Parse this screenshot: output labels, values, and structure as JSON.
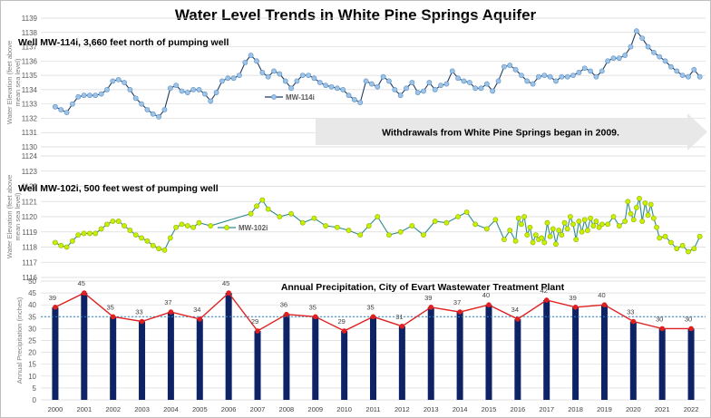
{
  "title": "Water Level Trends in White Pine Springs Aquifer",
  "colors": {
    "mw114_line": "#1f3b5c",
    "mw114_marker": "#9dc3e6",
    "mw114_marker_edge": "#5b8fc7",
    "mw102_line": "#2e8b8b",
    "mw102_marker": "#c8f000",
    "mw102_marker_edge": "#8fb000",
    "bar": "#0d2366",
    "precip_line": "#e02020",
    "avg_line": "#2e86c1",
    "grid": "#d9d9d9",
    "arrow_fill": "#e8e8e8"
  },
  "chart_data": [
    {
      "type": "line",
      "id": "mw114",
      "title": "Well MW-114i, 3,660 feet north of pumping well",
      "ylabel": "Water Elevation (feet above mean sea level)",
      "legend": "MW-114i",
      "ylim": [
        1130,
        1139
      ],
      "yticks": [
        1130,
        1131,
        1132,
        1133,
        1134,
        1135,
        1136,
        1137,
        1138,
        1139
      ],
      "annotation": "Withdrawals from White Pine Springs began in 2009.",
      "x": [
        2000.0,
        2000.2,
        2000.4,
        2000.6,
        2000.8,
        2001.0,
        2001.2,
        2001.4,
        2001.6,
        2001.8,
        2002.0,
        2002.2,
        2002.4,
        2002.6,
        2002.8,
        2003.0,
        2003.2,
        2003.4,
        2003.6,
        2003.8,
        2004.0,
        2004.2,
        2004.4,
        2004.6,
        2004.8,
        2005.0,
        2005.2,
        2005.4,
        2005.6,
        2005.8,
        2006.0,
        2006.2,
        2006.4,
        2006.6,
        2006.8,
        2007.0,
        2007.2,
        2007.4,
        2007.6,
        2007.8,
        2008.0,
        2008.2,
        2008.4,
        2008.6,
        2008.8,
        2009.0,
        2009.2,
        2009.4,
        2009.6,
        2009.8,
        2010.0,
        2010.2,
        2010.4,
        2010.6,
        2010.8,
        2011.0,
        2011.2,
        2011.4,
        2011.6,
        2011.8,
        2012.0,
        2012.2,
        2012.4,
        2012.6,
        2012.8,
        2013.0,
        2013.2,
        2013.4,
        2013.6,
        2013.8,
        2014.0,
        2014.2,
        2014.4,
        2014.6,
        2014.8,
        2015.0,
        2015.2,
        2015.4,
        2015.6,
        2015.8,
        2016.0,
        2016.2,
        2016.4,
        2016.6,
        2016.8,
        2017.0,
        2017.2,
        2017.4,
        2017.6,
        2017.8,
        2018.0,
        2018.2,
        2018.4,
        2018.6,
        2018.8,
        2019.0,
        2019.2,
        2019.4,
        2019.6,
        2019.8,
        2020.0,
        2020.2,
        2020.4,
        2020.6,
        2020.8,
        2021.0,
        2021.2,
        2021.4,
        2021.6,
        2021.8,
        2022.0,
        2022.2,
        2022.4
      ],
      "y": [
        1132.8,
        1132.6,
        1132.4,
        1133.0,
        1133.5,
        1133.6,
        1133.6,
        1133.6,
        1133.7,
        1134.0,
        1134.6,
        1134.7,
        1134.5,
        1134.0,
        1133.4,
        1133.0,
        1132.6,
        1132.3,
        1132.1,
        1132.6,
        1134.1,
        1134.3,
        1133.9,
        1133.8,
        1134.0,
        1134.0,
        1133.7,
        1133.2,
        1133.8,
        1134.6,
        1134.8,
        1134.8,
        1135.0,
        1135.9,
        1136.4,
        1136.0,
        1135.2,
        1134.9,
        1135.3,
        1135.1,
        1134.6,
        1134.1,
        1134.6,
        1135.0,
        1135.0,
        1134.8,
        1134.5,
        1134.3,
        1134.2,
        1134.1,
        1134.0,
        1133.6,
        1133.3,
        1133.1,
        1134.6,
        1134.4,
        1134.2,
        1134.9,
        1134.6,
        1134.0,
        1133.6,
        1134.1,
        1134.5,
        1133.8,
        1133.9,
        1134.5,
        1134.0,
        1134.3,
        1134.4,
        1135.3,
        1134.8,
        1134.6,
        1134.5,
        1134.1,
        1134.1,
        1134.4,
        1133.9,
        1134.6,
        1135.6,
        1135.7,
        1135.4,
        1135.0,
        1134.6,
        1134.4,
        1134.9,
        1135.0,
        1134.9,
        1134.6,
        1134.9,
        1134.9,
        1135.0,
        1135.2,
        1135.5,
        1135.3,
        1134.9,
        1135.3,
        1136.0,
        1136.2,
        1136.2,
        1136.4,
        1137.0,
        1138.1,
        1137.6,
        1137.0,
        1136.6,
        1136.3,
        1136.0,
        1135.6,
        1135.3,
        1135.0,
        1134.9,
        1135.4,
        1134.9
      ]
    },
    {
      "type": "line",
      "id": "mw102",
      "title": "Well MW-102i, 500 feet west of pumping well",
      "ylabel": "Water Elevation (feet above mean sea level)",
      "legend": "MW-102i",
      "ylim": [
        1116,
        1124
      ],
      "yticks": [
        1116,
        1117,
        1118,
        1119,
        1120,
        1121,
        1122,
        1123,
        1124
      ],
      "x": [
        2000.0,
        2000.2,
        2000.4,
        2000.6,
        2000.8,
        2001.0,
        2001.2,
        2001.4,
        2001.6,
        2001.8,
        2002.0,
        2002.2,
        2002.4,
        2002.6,
        2002.8,
        2003.0,
        2003.2,
        2003.4,
        2003.6,
        2003.8,
        2004.0,
        2004.2,
        2004.4,
        2004.6,
        2004.8,
        2005.0,
        2005.4,
        2006.8,
        2007.0,
        2007.2,
        2007.4,
        2007.8,
        2008.2,
        2008.6,
        2009.0,
        2009.4,
        2009.8,
        2010.2,
        2010.6,
        2010.9,
        2011.2,
        2011.6,
        2012.0,
        2012.4,
        2012.8,
        2013.2,
        2013.6,
        2014.0,
        2014.3,
        2014.6,
        2015.0,
        2015.3,
        2015.6,
        2015.8,
        2016.0,
        2016.1,
        2016.2,
        2016.3,
        2016.4,
        2016.5,
        2016.6,
        2016.7,
        2016.8,
        2016.9,
        2017.0,
        2017.1,
        2017.2,
        2017.3,
        2017.4,
        2017.5,
        2017.6,
        2017.7,
        2017.8,
        2017.9,
        2018.0,
        2018.1,
        2018.2,
        2018.3,
        2018.4,
        2018.5,
        2018.6,
        2018.7,
        2018.8,
        2018.9,
        2019.0,
        2019.2,
        2019.4,
        2019.6,
        2019.8,
        2019.9,
        2020.0,
        2020.1,
        2020.2,
        2020.3,
        2020.4,
        2020.5,
        2020.6,
        2020.7,
        2020.8,
        2020.9,
        2021.0,
        2021.2,
        2021.4,
        2021.6,
        2021.8,
        2022.0,
        2022.2,
        2022.4
      ],
      "y": [
        1118.3,
        1118.1,
        1118.0,
        1118.4,
        1118.8,
        1118.9,
        1118.9,
        1118.9,
        1119.2,
        1119.5,
        1119.7,
        1119.7,
        1119.4,
        1119.1,
        1118.8,
        1118.6,
        1118.4,
        1118.1,
        1117.9,
        1117.8,
        1118.6,
        1119.3,
        1119.5,
        1119.4,
        1119.3,
        1119.6,
        1119.4,
        1120.2,
        1120.7,
        1121.1,
        1120.5,
        1120.0,
        1120.2,
        1119.6,
        1119.9,
        1119.4,
        1119.3,
        1119.1,
        1118.8,
        1119.4,
        1120.0,
        1118.8,
        1119.0,
        1119.4,
        1118.8,
        1119.7,
        1119.6,
        1120.0,
        1120.3,
        1119.5,
        1119.2,
        1119.8,
        1118.5,
        1119.1,
        1118.4,
        1119.9,
        1119.5,
        1120.0,
        1118.8,
        1119.3,
        1118.3,
        1118.8,
        1118.5,
        1118.6,
        1118.3,
        1119.6,
        1118.7,
        1119.2,
        1118.2,
        1119.1,
        1118.8,
        1119.6,
        1119.2,
        1120.0,
        1119.5,
        1118.5,
        1119.7,
        1119.0,
        1119.8,
        1119.1,
        1119.9,
        1119.4,
        1119.7,
        1119.3,
        1119.5,
        1119.5,
        1120.0,
        1119.4,
        1119.7,
        1121.0,
        1120.2,
        1119.8,
        1120.6,
        1121.2,
        1119.7,
        1120.9,
        1120.1,
        1120.8,
        1119.9,
        1119.3,
        1118.6,
        1118.7,
        1118.3,
        1117.9,
        1118.1,
        1117.7,
        1117.9,
        1118.7
      ]
    },
    {
      "type": "bar",
      "id": "precip",
      "title": "Annual Precipitation, City of Evart Wastewater Treatment Plant",
      "ylabel": "Annual Precipitation (inches)",
      "ylim": [
        0,
        50
      ],
      "yticks": [
        0,
        5,
        10,
        15,
        20,
        25,
        30,
        35,
        40,
        45,
        50
      ],
      "average": 35,
      "categories": [
        "2000",
        "2001",
        "2002",
        "2003",
        "2004",
        "2005",
        "2006",
        "2007",
        "2008",
        "2009",
        "2010",
        "2011",
        "2012",
        "2013",
        "2014",
        "2015",
        "2016",
        "2017",
        "2018",
        "2019",
        "2020",
        "2021",
        "2022"
      ],
      "values": [
        39,
        45,
        35,
        33,
        37,
        34,
        45,
        29,
        36,
        35,
        29,
        35,
        31,
        39,
        37,
        40,
        34,
        42,
        39,
        40,
        33,
        30,
        30
      ],
      "labels": [
        "39",
        "45",
        "35",
        "33",
        "37",
        "34",
        "45",
        "29",
        "36",
        "35",
        "29",
        "35",
        "31",
        "39",
        "37",
        "40",
        "34",
        "42",
        "39",
        "40",
        "33",
        "30",
        "30"
      ]
    }
  ]
}
